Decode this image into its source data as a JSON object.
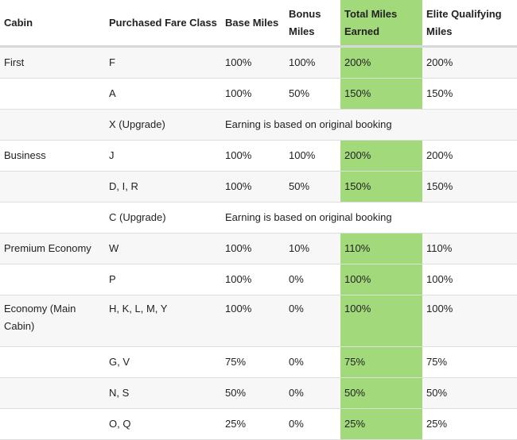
{
  "headers": {
    "cabin": "Cabin",
    "fare_class": "Purchased Fare Class",
    "base_miles": "Base Miles",
    "bonus_miles": "Bonus Miles",
    "total_miles": "Total Miles Earned",
    "elite_qualifying": "Elite Qualifying Miles"
  },
  "rows": [
    {
      "cabin": "First",
      "fare": "F",
      "base": "100%",
      "bonus": "100%",
      "total": "200%",
      "elite": "200%"
    },
    {
      "cabin": "",
      "fare": "A",
      "base": "100%",
      "bonus": "50%",
      "total": "150%",
      "elite": "150%"
    },
    {
      "cabin": "",
      "fare": "X (Upgrade)",
      "note": "Earning is based on original booking"
    },
    {
      "cabin": "Business",
      "fare": "J",
      "base": "100%",
      "bonus": "100%",
      "total": "200%",
      "elite": "200%"
    },
    {
      "cabin": "",
      "fare": "D, I, R",
      "base": "100%",
      "bonus": "50%",
      "total": "150%",
      "elite": "150%"
    },
    {
      "cabin": "",
      "fare": "C (Upgrade)",
      "note": "Earning is based on original booking"
    },
    {
      "cabin": "Premium Economy",
      "fare": "W",
      "base": "100%",
      "bonus": "10%",
      "total": "110%",
      "elite": "110%"
    },
    {
      "cabin": "",
      "fare": "P",
      "base": "100%",
      "bonus": "0%",
      "total": "100%",
      "elite": "100%"
    },
    {
      "cabin": "Economy (Main Cabin)",
      "fare": "H, K, L, M, Y",
      "base": "100%",
      "bonus": "0%",
      "total": "100%",
      "elite": "100%"
    },
    {
      "cabin": "",
      "fare": "G, V",
      "base": "75%",
      "bonus": "0%",
      "total": "75%",
      "elite": "75%"
    },
    {
      "cabin": "",
      "fare": "N, S",
      "base": "50%",
      "bonus": "0%",
      "total": "50%",
      "elite": "50%"
    },
    {
      "cabin": "",
      "fare": "O, Q",
      "base": "25%",
      "bonus": "0%",
      "total": "25%",
      "elite": "25%"
    }
  ],
  "colors": {
    "highlight": "#a2d97a",
    "row_alt": "#f7f7f7"
  }
}
